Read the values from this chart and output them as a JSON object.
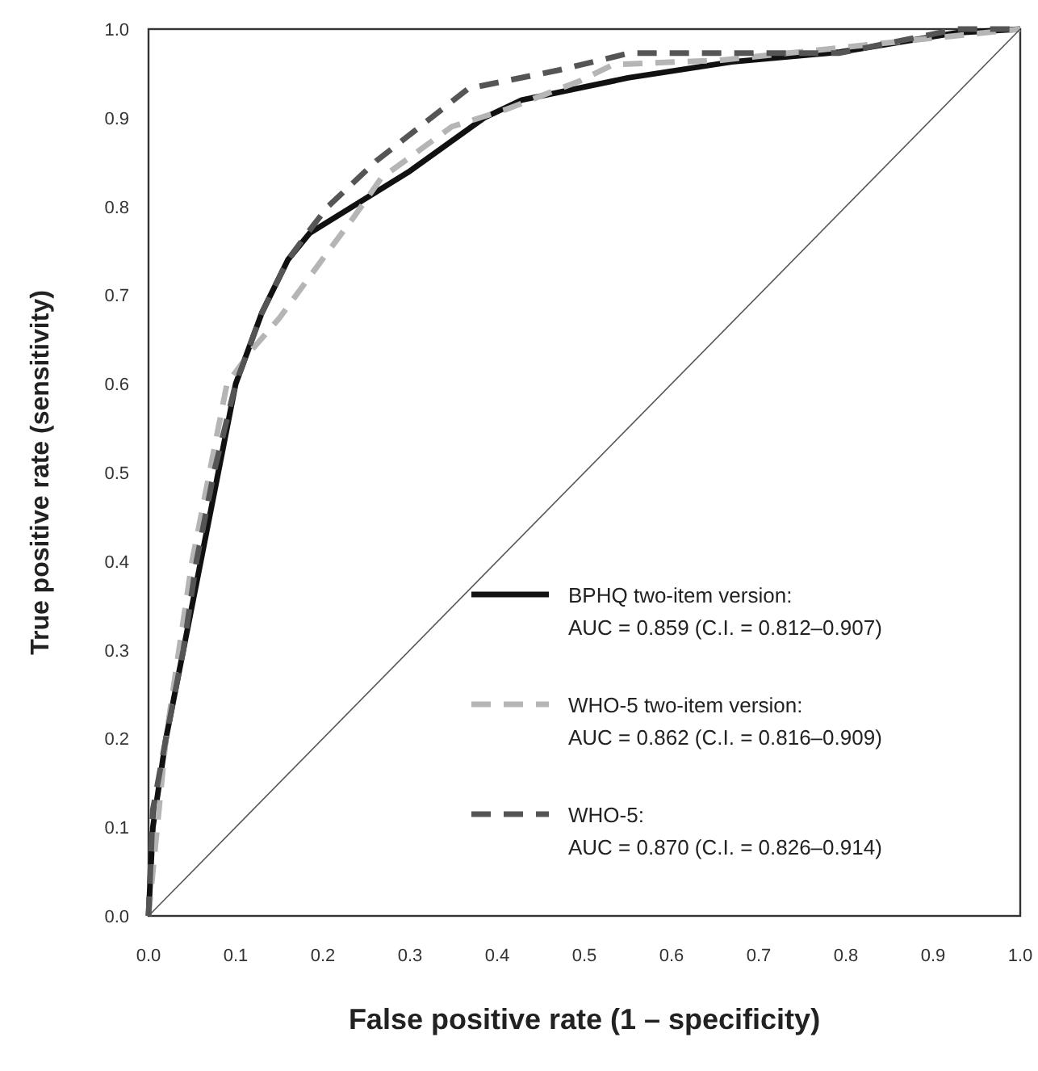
{
  "chart_data": {
    "type": "line",
    "xlabel": "False positive rate (1 – specificity)",
    "ylabel": "True positive rate (sensitivity)",
    "xlim": [
      0,
      1
    ],
    "ylim": [
      0,
      1
    ],
    "xticks": [
      {
        "value": 0,
        "label": "0.0"
      },
      0.1,
      0.2,
      0.3,
      0.4,
      0.5,
      0.6,
      0.7,
      0.8,
      0.9,
      {
        "value": 1,
        "label": "1.0"
      }
    ],
    "yticks": [
      {
        "value": 0,
        "label": "0.0"
      },
      0.1,
      0.2,
      0.3,
      0.4,
      0.5,
      0.6,
      0.7,
      0.8,
      0.9,
      {
        "value": 1,
        "label": "1.0"
      }
    ],
    "grid": false,
    "legend": "bottom right",
    "series": [
      {
        "name": "BPHQ two-item version:",
        "color": "#111111",
        "line_style": "solid",
        "x": [
          0,
          0.005,
          0.02,
          0.04,
          0.06,
          0.08,
          0.1,
          0.13,
          0.16,
          0.185,
          0.3,
          0.385,
          0.428,
          0.55,
          0.669,
          0.793,
          0.928,
          1
        ],
        "values": [
          0,
          0.1,
          0.2,
          0.3,
          0.4,
          0.5,
          0.6,
          0.68,
          0.74,
          0.77,
          0.84,
          0.9,
          0.92,
          0.945,
          0.963,
          0.974,
          0.996,
          1
        ]
      },
      {
        "name": "WHO-5 two-item version:",
        "color": "#b5b5b5",
        "line_style": "dashed",
        "x": [
          0,
          0.01,
          0.02,
          0.035,
          0.05,
          0.07,
          0.09,
          0.12,
          0.15,
          0.2,
          0.237,
          0.267,
          0.348,
          0.409,
          0.496,
          0.533,
          0.657,
          0.843,
          1
        ],
        "values": [
          0,
          0.1,
          0.2,
          0.3,
          0.4,
          0.5,
          0.6,
          0.64,
          0.674,
          0.741,
          0.79,
          0.832,
          0.89,
          0.909,
          0.942,
          0.96,
          0.965,
          0.984,
          1
        ]
      },
      {
        "name": "WHO-5:",
        "color": "#555555",
        "line_style": "dashed",
        "x": [
          0,
          0.005,
          0.02,
          0.04,
          0.055,
          0.075,
          0.1,
          0.13,
          0.16,
          0.19,
          0.206,
          0.261,
          0.367,
          0.472,
          0.552,
          0.793,
          0.928,
          1
        ],
        "values": [
          0,
          0.12,
          0.2,
          0.3,
          0.4,
          0.5,
          0.6,
          0.68,
          0.74,
          0.78,
          0.8,
          0.851,
          0.933,
          0.954,
          0.973,
          0.973,
          1,
          1
        ]
      },
      {
        "color": "#555555",
        "line_style": "solid",
        "x": [
          0,
          1
        ],
        "values": [
          0,
          1
        ]
      }
    ],
    "annotations": [
      "AUC = 0.859 (C.I. = 0.812–0.907)",
      "AUC = 0.862 (C.I. = 0.816–0.909)",
      "AUC = 0.870 (C.I. = 0.826–0.914)"
    ]
  }
}
